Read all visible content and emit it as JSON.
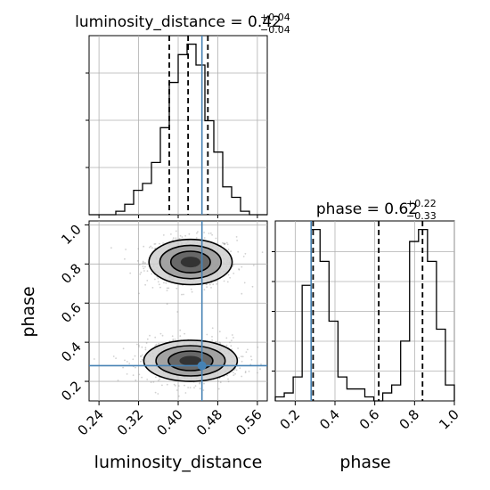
{
  "chart_data": {
    "type": "corner",
    "variables": [
      "luminosity_distance",
      "phase"
    ],
    "axis_labels": {
      "x_left": "luminosity_distance",
      "x_right": "phase",
      "y_left": "phase"
    },
    "truths": {
      "luminosity_distance": 0.448,
      "phase": 0.28
    },
    "colors": {
      "histogram": "#000000",
      "truth": "#4682b4",
      "quantile": "#000000",
      "grid": "#b0b0b0"
    },
    "grid": true,
    "panels": [
      {
        "id": "hist-luminosity",
        "type": "histogram",
        "title": {
          "prefix": "luminosity_distance = ",
          "value": "0.42",
          "plus": "+0.04",
          "minus": "−0.04"
        },
        "xlim": [
          0.22,
          0.58
        ],
        "bin_edges": [
          0.22,
          0.238,
          0.256,
          0.274,
          0.292,
          0.31,
          0.328,
          0.346,
          0.364,
          0.382,
          0.4,
          0.418,
          0.436,
          0.454,
          0.472,
          0.49,
          0.508,
          0.526,
          0.544,
          0.562,
          0.58
        ],
        "counts": [
          0,
          0,
          0,
          1,
          3,
          7,
          9,
          15,
          25,
          38,
          46,
          49,
          43,
          27,
          18,
          8,
          5,
          1,
          0,
          0
        ],
        "quantiles": [
          0.382,
          0.42,
          0.46
        ]
      },
      {
        "id": "hist-phase",
        "type": "histogram",
        "title": {
          "prefix": "phase = ",
          "value": "0.62",
          "plus": "+0.22",
          "minus": "−0.33"
        },
        "xlim": [
          0.1,
          1.0
        ],
        "bin_edges": [
          0.1,
          0.145,
          0.19,
          0.235,
          0.28,
          0.325,
          0.37,
          0.415,
          0.46,
          0.505,
          0.55,
          0.595,
          0.64,
          0.685,
          0.73,
          0.775,
          0.82,
          0.865,
          0.91,
          0.955,
          1.0
        ],
        "counts": [
          1,
          2,
          6,
          29,
          43,
          35,
          20,
          6,
          3,
          3,
          1,
          0,
          2,
          4,
          15,
          40,
          43,
          35,
          18,
          4
        ],
        "quantiles": [
          0.29,
          0.62,
          0.84
        ]
      },
      {
        "id": "scatter-2d",
        "type": "2d-density",
        "xlim": [
          0.22,
          0.58
        ],
        "ylim": [
          0.1,
          1.02
        ],
        "modes": [
          {
            "center": [
              0.425,
              0.81
            ],
            "spread": [
              0.04,
              0.055
            ]
          },
          {
            "center": [
              0.425,
              0.305
            ],
            "spread": [
              0.045,
              0.05
            ]
          }
        ]
      }
    ],
    "ticks": {
      "luminosity_distance": [
        "0.24",
        "0.32",
        "0.40",
        "0.48",
        "0.56"
      ],
      "phase_y": [
        "0.2",
        "0.4",
        "0.6",
        "0.8",
        "1.0"
      ],
      "phase_x": [
        "0.2",
        "0.4",
        "0.6",
        "0.8",
        "1.0"
      ]
    }
  }
}
